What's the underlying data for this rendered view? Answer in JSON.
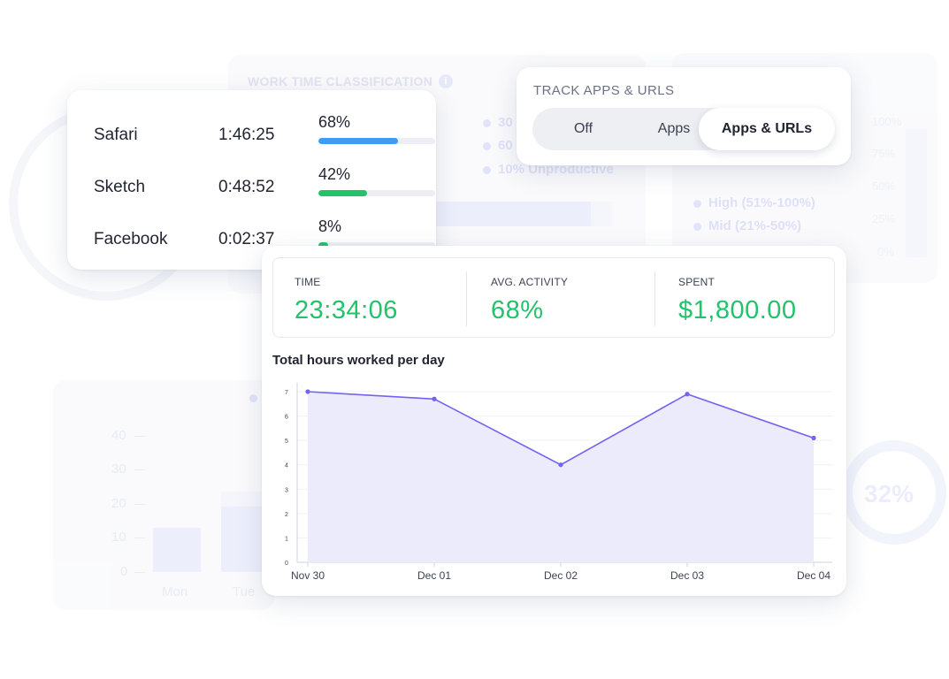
{
  "background": {
    "section_title": "WORK TIME CLASSIFICATION",
    "info_icon": "info-icon",
    "classification_legend": [
      "30",
      "60",
      "10% Unproductive"
    ],
    "activity_legend": [
      "High (51%-100%)",
      "Mid (21%-50%)"
    ],
    "activity_axis": [
      "100%",
      "75%",
      "50%",
      "25%",
      "0%"
    ],
    "hours_axis": [
      "40",
      "30",
      "20",
      "10",
      "0"
    ],
    "days": [
      "Mon",
      "Tue"
    ],
    "ring_value": "32%"
  },
  "apps": [
    {
      "name": "Safari",
      "time": "1:46:25",
      "percent_label": "68%",
      "percent": 68,
      "color": "#3d9cf5"
    },
    {
      "name": "Sketch",
      "time": "0:48:52",
      "percent_label": "42%",
      "percent": 42,
      "color": "#22c36a"
    },
    {
      "name": "Facebook",
      "time": "0:02:37",
      "percent_label": "8%",
      "percent": 8,
      "color": "#22c36a"
    }
  ],
  "track": {
    "title": "TRACK APPS & URLS",
    "options": [
      "Off",
      "Apps",
      "Apps & URLs"
    ],
    "selected": "Apps & URLs"
  },
  "stats": [
    {
      "label": "TIME",
      "value": "23:34:06"
    },
    {
      "label": "AVG. ACTIVITY",
      "value": "68%"
    },
    {
      "label": "SPENT",
      "value": "$1,800.00"
    }
  ],
  "colors": {
    "accent_green": "#22c36a",
    "line": "#7263f0",
    "area": "#ecebfc"
  },
  "chart_data": {
    "type": "area",
    "title": "Total hours worked per day",
    "categories": [
      "Nov 30",
      "Dec 01",
      "Dec 02",
      "Dec 03",
      "Dec 04"
    ],
    "series": [
      {
        "values": [
          7.0,
          6.7,
          4.0,
          6.9,
          5.1
        ]
      }
    ],
    "ylim": [
      0,
      7
    ],
    "yticks": [
      "0",
      "1",
      "2",
      "3",
      "4",
      "5",
      "6",
      "7"
    ],
    "grid": true,
    "xlabel": "",
    "ylabel": ""
  }
}
